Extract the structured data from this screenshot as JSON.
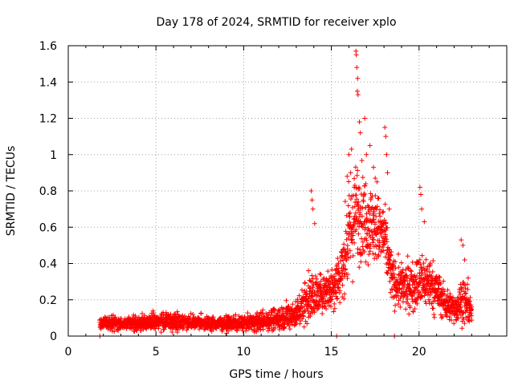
{
  "chart_data": {
    "type": "scatter",
    "title": "Day 178 of 2024, SRMTID for receiver xplo",
    "xlabel": "GPS time / hours",
    "ylabel": "SRMTID / TECUs",
    "xlim": [
      0,
      25
    ],
    "ylim": [
      0,
      1.6
    ],
    "xticks": [
      0,
      5,
      10,
      15,
      20
    ],
    "xtick_labels": [
      "0",
      "5",
      "10",
      "15",
      "20"
    ],
    "yticks": [
      0,
      0.2,
      0.4,
      0.6,
      0.8,
      1,
      1.2,
      1.4,
      1.6
    ],
    "ytick_labels": [
      "0",
      "0.2",
      "0.4",
      "0.6",
      "0.8",
      "1",
      "1.2",
      "1.4",
      "1.6"
    ],
    "grid": true,
    "marker": "+",
    "color": "#ff0000",
    "profile": {
      "description": "approximate typical value and spread of the point cloud by hour",
      "hours": [
        1.8,
        3,
        4,
        5,
        6,
        7,
        8,
        9,
        10,
        11,
        12,
        13,
        13.5,
        14,
        14.5,
        15,
        15.5,
        16,
        16.5,
        17,
        17.5,
        18,
        18.5,
        19,
        19.5,
        20,
        20.5,
        21,
        21.5,
        22,
        22.5,
        23
      ],
      "center": [
        0.07,
        0.07,
        0.07,
        0.08,
        0.08,
        0.08,
        0.07,
        0.07,
        0.07,
        0.08,
        0.1,
        0.12,
        0.2,
        0.22,
        0.24,
        0.27,
        0.33,
        0.55,
        0.7,
        0.65,
        0.6,
        0.55,
        0.3,
        0.27,
        0.27,
        0.3,
        0.3,
        0.25,
        0.18,
        0.15,
        0.2,
        0.13
      ],
      "spread": [
        0.03,
        0.03,
        0.03,
        0.04,
        0.04,
        0.03,
        0.03,
        0.03,
        0.03,
        0.04,
        0.05,
        0.06,
        0.1,
        0.1,
        0.08,
        0.1,
        0.12,
        0.2,
        0.22,
        0.18,
        0.15,
        0.15,
        0.1,
        0.1,
        0.1,
        0.12,
        0.12,
        0.1,
        0.07,
        0.06,
        0.1,
        0.05
      ]
    },
    "notable_points": [
      {
        "x": 1.8,
        "y": 0.0
      },
      {
        "x": 13.85,
        "y": 0.8
      },
      {
        "x": 13.9,
        "y": 0.75
      },
      {
        "x": 13.95,
        "y": 0.7
      },
      {
        "x": 14.05,
        "y": 0.62
      },
      {
        "x": 15.3,
        "y": 0.0
      },
      {
        "x": 15.9,
        "y": 0.88
      },
      {
        "x": 16.0,
        "y": 1.0
      },
      {
        "x": 16.1,
        "y": 0.9
      },
      {
        "x": 16.15,
        "y": 1.03
      },
      {
        "x": 16.4,
        "y": 1.57
      },
      {
        "x": 16.42,
        "y": 1.55
      },
      {
        "x": 16.45,
        "y": 1.48
      },
      {
        "x": 16.5,
        "y": 1.42
      },
      {
        "x": 16.48,
        "y": 1.35
      },
      {
        "x": 16.52,
        "y": 1.33
      },
      {
        "x": 16.6,
        "y": 1.18
      },
      {
        "x": 16.65,
        "y": 1.12
      },
      {
        "x": 16.9,
        "y": 1.2
      },
      {
        "x": 17.0,
        "y": 1.0
      },
      {
        "x": 17.2,
        "y": 1.05
      },
      {
        "x": 17.4,
        "y": 0.93
      },
      {
        "x": 17.5,
        "y": 0.87
      },
      {
        "x": 17.6,
        "y": 0.85
      },
      {
        "x": 18.05,
        "y": 1.15
      },
      {
        "x": 18.1,
        "y": 1.1
      },
      {
        "x": 18.15,
        "y": 1.0
      },
      {
        "x": 18.2,
        "y": 0.9
      },
      {
        "x": 18.3,
        "y": 0.7
      },
      {
        "x": 18.6,
        "y": 0.0
      },
      {
        "x": 20.05,
        "y": 0.82
      },
      {
        "x": 20.1,
        "y": 0.78
      },
      {
        "x": 20.15,
        "y": 0.7
      },
      {
        "x": 20.3,
        "y": 0.63
      },
      {
        "x": 22.4,
        "y": 0.53
      },
      {
        "x": 22.5,
        "y": 0.5
      },
      {
        "x": 22.6,
        "y": 0.42
      },
      {
        "x": 22.8,
        "y": 0.32
      }
    ]
  }
}
